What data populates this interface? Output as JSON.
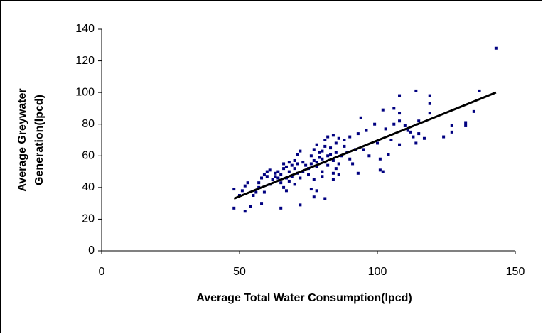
{
  "chart_data": {
    "type": "scatter",
    "xlabel": "Average Total Water Consumption(lpcd)",
    "ylabel": [
      "Average Greywater",
      "Generation(lpcd)"
    ],
    "xlim": [
      0,
      150
    ],
    "xticks": [
      0,
      50,
      100,
      150
    ],
    "ylim": [
      0,
      140
    ],
    "yticks": [
      0,
      20,
      40,
      60,
      80,
      100,
      120,
      140
    ],
    "grid": false,
    "series": [
      {
        "color": "#000080",
        "x": [
          48,
          48,
          50,
          51,
          52,
          52,
          53,
          54,
          55,
          56,
          57,
          57,
          58,
          58,
          59,
          59,
          60,
          60,
          61,
          61,
          62,
          63,
          63,
          64,
          64,
          65,
          65,
          65,
          66,
          66,
          66,
          67,
          67,
          67,
          68,
          68,
          68,
          69,
          69,
          70,
          70,
          70,
          71,
          71,
          71,
          72,
          72,
          72,
          73,
          73,
          74,
          75,
          75,
          76,
          76,
          76,
          77,
          77,
          77,
          77,
          78,
          78,
          78,
          78,
          79,
          79,
          80,
          80,
          80,
          80,
          81,
          81,
          81,
          81,
          82,
          82,
          82,
          83,
          83,
          84,
          84,
          84,
          84,
          85,
          85,
          85,
          86,
          86,
          86,
          87,
          88,
          88,
          89,
          90,
          90,
          91,
          92,
          93,
          93,
          94,
          95,
          96,
          97,
          99,
          100,
          101,
          101,
          102,
          102,
          103,
          104,
          105,
          106,
          106,
          108,
          108,
          108,
          108,
          110,
          111,
          112,
          113,
          114,
          114,
          115,
          115,
          117,
          119,
          119,
          119,
          124,
          127,
          127,
          132,
          132,
          135,
          137,
          143
        ],
        "values": [
          39,
          27,
          35,
          38,
          41,
          25,
          43,
          28,
          35,
          37,
          40,
          43,
          46,
          30,
          48,
          37,
          50,
          47,
          51,
          42,
          45,
          49,
          47,
          46,
          50,
          43,
          27,
          48,
          52,
          55,
          40,
          38,
          46,
          53,
          56,
          50,
          44,
          54,
          47,
          52,
          57,
          42,
          55,
          49,
          61,
          63,
          29,
          46,
          56,
          50,
          54,
          52,
          48,
          60,
          55,
          39,
          64,
          57,
          45,
          34,
          38,
          56,
          53,
          67,
          59,
          62,
          63,
          58,
          50,
          47,
          70,
          66,
          56,
          33,
          72,
          60,
          54,
          61,
          65,
          73,
          57,
          49,
          45,
          68,
          62,
          52,
          71,
          55,
          48,
          60,
          66,
          70,
          62,
          72,
          58,
          55,
          64,
          74,
          49,
          84,
          64,
          76,
          60,
          80,
          68,
          51,
          58,
          50,
          89,
          77,
          61,
          70,
          80,
          90,
          98,
          87,
          82,
          67,
          79,
          76,
          75,
          72,
          101,
          68,
          82,
          74,
          71,
          98,
          93,
          87,
          72,
          79,
          75,
          81,
          79,
          88,
          101,
          128
        ]
      }
    ],
    "trendline": {
      "color": "#000000",
      "x": [
        48,
        143
      ],
      "values": [
        33,
        100
      ]
    }
  }
}
